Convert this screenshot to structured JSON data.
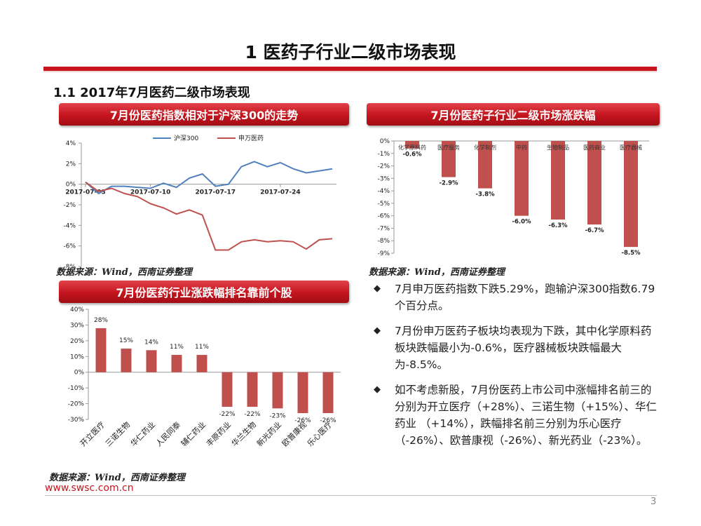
{
  "title": "1 医药子行业二级市场表现",
  "subtitle": "1.1 2017年7月医药二级市场表现",
  "banners": {
    "trend": "7月份医药指数相对于沪深300的走势",
    "sub_industry": "7月份医药子行业二级市场涨跌幅",
    "top_stocks": "7月份医药行业涨跌幅排名靠前个股"
  },
  "source_note": "数据来源：Wind，西南证券整理",
  "bullets": [
    "7月申万医药指数下跌5.29%，跑输沪深300指数6.79个百分点。",
    "7月份申万医药子板块均表现为下跌，其中化学原料药板块跌幅最小为-0.6%，医疗器械板块跌幅最大为-8.5%。",
    "如不考虑新股，7月份医药上市公司中涨幅排名前三的分别为开立医疗（+28%）、三诺生物（+15%）、华仁药业 （+14%），跌幅排名前三分别为乐心医疗（-26%）、欧普康视（-26%）、新光药业（-23%）。"
  ],
  "bullet_icon": "diamond-bullet-icon",
  "footer": {
    "url": "www.swsc.com.cn",
    "page": "3"
  },
  "colors": {
    "accent_red": "#c8141e",
    "bar_red": "#c0504d",
    "line_blue": "#4f81bd"
  },
  "chart_data": [
    {
      "type": "line",
      "title": "7月份医药指数相对于沪深300的走势",
      "x_tick_labels": [
        "2017-07-03",
        "2017-07-10",
        "2017-07-17",
        "2017-07-24"
      ],
      "x_tick_index": [
        0,
        5,
        10,
        15
      ],
      "y_tick_labels": [
        "4%",
        "2%",
        "0%",
        "-2%",
        "-4%",
        "-6%",
        "-8%"
      ],
      "ylim": [
        -8,
        4
      ],
      "series": [
        {
          "name": "沪深300",
          "color": "#4f81bd",
          "values": [
            0.2,
            -0.9,
            -0.2,
            -0.2,
            -0.3,
            -0.4,
            0.1,
            -0.3,
            0.6,
            1.0,
            -0.2,
            0.0,
            1.7,
            2.2,
            1.7,
            2.1,
            1.5,
            1.1,
            1.3,
            1.5
          ]
        },
        {
          "name": "申万医药",
          "color": "#c0504d",
          "values": [
            0.2,
            -0.7,
            -0.4,
            -0.9,
            -1.2,
            -1.9,
            -2.3,
            -2.9,
            -2.5,
            -3.0,
            -6.4,
            -6.4,
            -5.6,
            -5.4,
            -5.6,
            -5.5,
            -5.6,
            -6.3,
            -5.4,
            -5.3
          ]
        }
      ]
    },
    {
      "type": "bar",
      "title": "7月份医药子行业二级市场涨跌幅",
      "categories": [
        "化学原料药",
        "医疗服务",
        "化学制剂",
        "中药",
        "生物制品",
        "医药商业",
        "医疗器械"
      ],
      "values": [
        -0.6,
        -2.9,
        -3.8,
        -6.0,
        -6.3,
        -6.7,
        -8.5
      ],
      "data_labels": [
        "-0.6%",
        "-2.9%",
        "-3.8%",
        "-6.0%",
        "-6.3%",
        "-6.7%",
        "-8.5%"
      ],
      "y_tick_labels": [
        "0%",
        "-1%",
        "-2%",
        "-3%",
        "-4%",
        "-5%",
        "-6%",
        "-7%",
        "-8%",
        "-9%"
      ],
      "ylim": [
        -9,
        0
      ]
    },
    {
      "type": "bar",
      "title": "7月份医药行业涨跌幅排名靠前个股",
      "categories": [
        "开立医疗",
        "三诺生物",
        "华仁药业",
        "人民同泰",
        "辅仁药业",
        "丰原药业",
        "华兰生物",
        "新光药业",
        "欧普康视",
        "乐心医疗"
      ],
      "values": [
        28,
        15,
        14,
        11,
        11,
        -22,
        -22,
        -23,
        -26,
        -26
      ],
      "data_labels": [
        "28%",
        "15%",
        "14%",
        "11%",
        "11%",
        "-22%",
        "-22%",
        "-23%",
        "-26%",
        "-26%"
      ],
      "y_tick_labels": [
        "40%",
        "30%",
        "20%",
        "10%",
        "0%",
        "-10%",
        "-20%",
        "-30%"
      ],
      "ylim": [
        -30,
        40
      ]
    }
  ]
}
